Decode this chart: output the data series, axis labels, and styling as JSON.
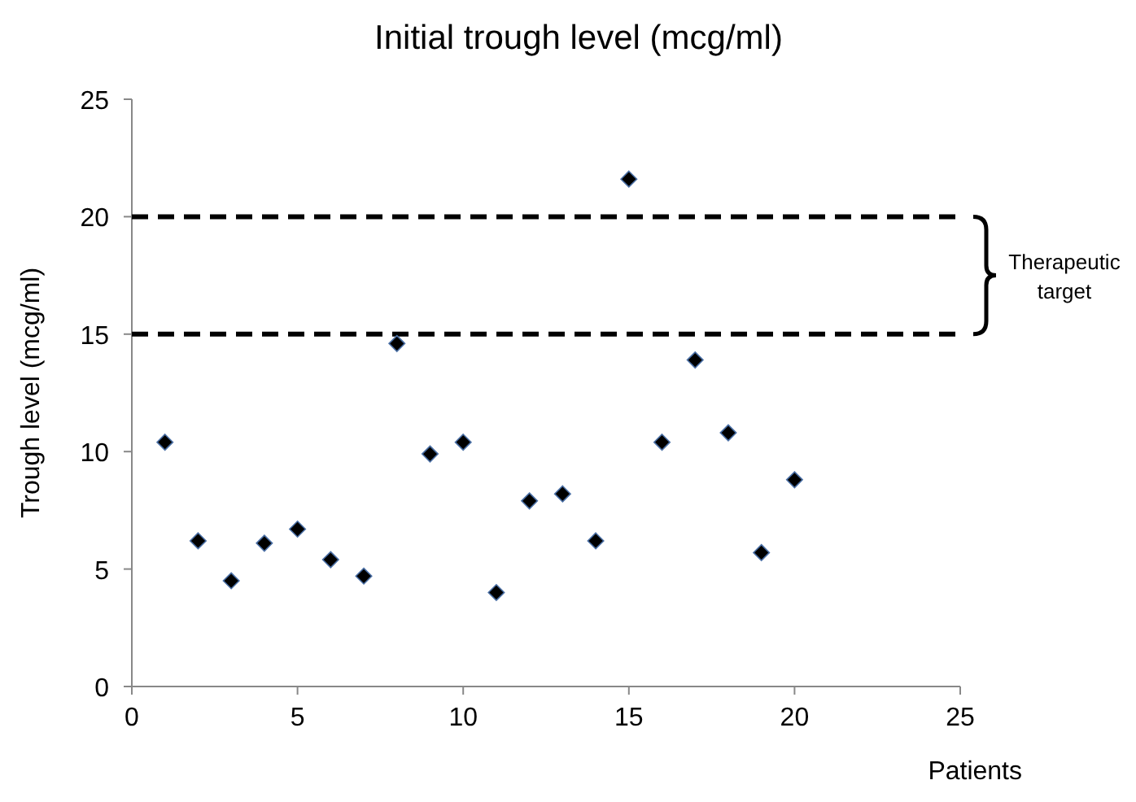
{
  "chart_data": {
    "type": "scatter",
    "title": "Initial trough level (mcg/ml)",
    "xlabel": "Patients",
    "ylabel": "Trough  level (mcg/ml)",
    "x": [
      1,
      2,
      3,
      4,
      5,
      6,
      7,
      8,
      9,
      10,
      11,
      12,
      13,
      14,
      15,
      16,
      17,
      18,
      19,
      20
    ],
    "series": [
      {
        "color": "#000000",
        "values": [
          10.4,
          6.2,
          4.5,
          6.1,
          6.7,
          5.4,
          4.7,
          14.6,
          9.9,
          10.4,
          4.0,
          7.9,
          8.2,
          6.2,
          21.6,
          10.4,
          13.9,
          10.8,
          5.7,
          8.8
        ]
      }
    ],
    "xlim": [
      0,
      25
    ],
    "xticks": [
      0,
      5,
      10,
      15,
      20,
      25
    ],
    "ylim": [
      0,
      25
    ],
    "yticks": [
      0,
      5,
      10,
      15,
      20,
      25
    ],
    "grid": false,
    "marker": "diamond",
    "ref_lines": [
      {
        "axis": "y",
        "value": 20,
        "line_style": "dashed",
        "color": "#000000"
      },
      {
        "axis": "y",
        "value": 15,
        "line_style": "dashed",
        "color": "#000000"
      }
    ],
    "annotations": [
      "Therapeutic target"
    ]
  }
}
